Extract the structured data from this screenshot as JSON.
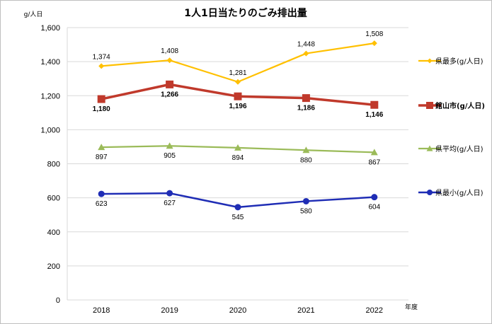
{
  "chart_data": {
    "type": "line",
    "title": "1人1日当たりのごみ排出量",
    "ylabel": "g/人日",
    "xlabel": "年度",
    "ylim": [
      0,
      1600
    ],
    "yticks": [
      0,
      200,
      400,
      600,
      800,
      1000,
      1200,
      1400,
      1600
    ],
    "ytick_labels": [
      "0",
      "200",
      "400",
      "600",
      "800",
      "1,000",
      "1,200",
      "1,400",
      "1,600"
    ],
    "categories": [
      "2018",
      "2019",
      "2020",
      "2021",
      "2022"
    ],
    "grid": true,
    "legend_position": "right",
    "series": [
      {
        "name": "県最多(g/人日)",
        "values": [
          1374,
          1408,
          1281,
          1448,
          1508
        ],
        "labels": [
          "1,374",
          "1,408",
          "1,281",
          "1,448",
          "1,508"
        ],
        "color": "#FFC000",
        "marker": "diamond",
        "label_position": "above",
        "bold": false
      },
      {
        "name": "館山市(g/人日)",
        "values": [
          1180,
          1266,
          1196,
          1186,
          1146
        ],
        "labels": [
          "1,180",
          "1,266",
          "1,196",
          "1,186",
          "1,146"
        ],
        "color": "#C0392B",
        "marker": "square",
        "label_position": "below",
        "bold": true
      },
      {
        "name": "県平均(g/人日)",
        "values": [
          897,
          905,
          894,
          880,
          867
        ],
        "labels": [
          "897",
          "905",
          "894",
          "880",
          "867"
        ],
        "color": "#9BBB59",
        "marker": "triangle",
        "label_position": "below",
        "bold": false
      },
      {
        "name": "県最小(g/人日)",
        "values": [
          623,
          627,
          545,
          580,
          604
        ],
        "labels": [
          "623",
          "627",
          "545",
          "580",
          "604"
        ],
        "color": "#1F2DB5",
        "marker": "circle",
        "label_position": "below",
        "bold": false
      }
    ]
  }
}
